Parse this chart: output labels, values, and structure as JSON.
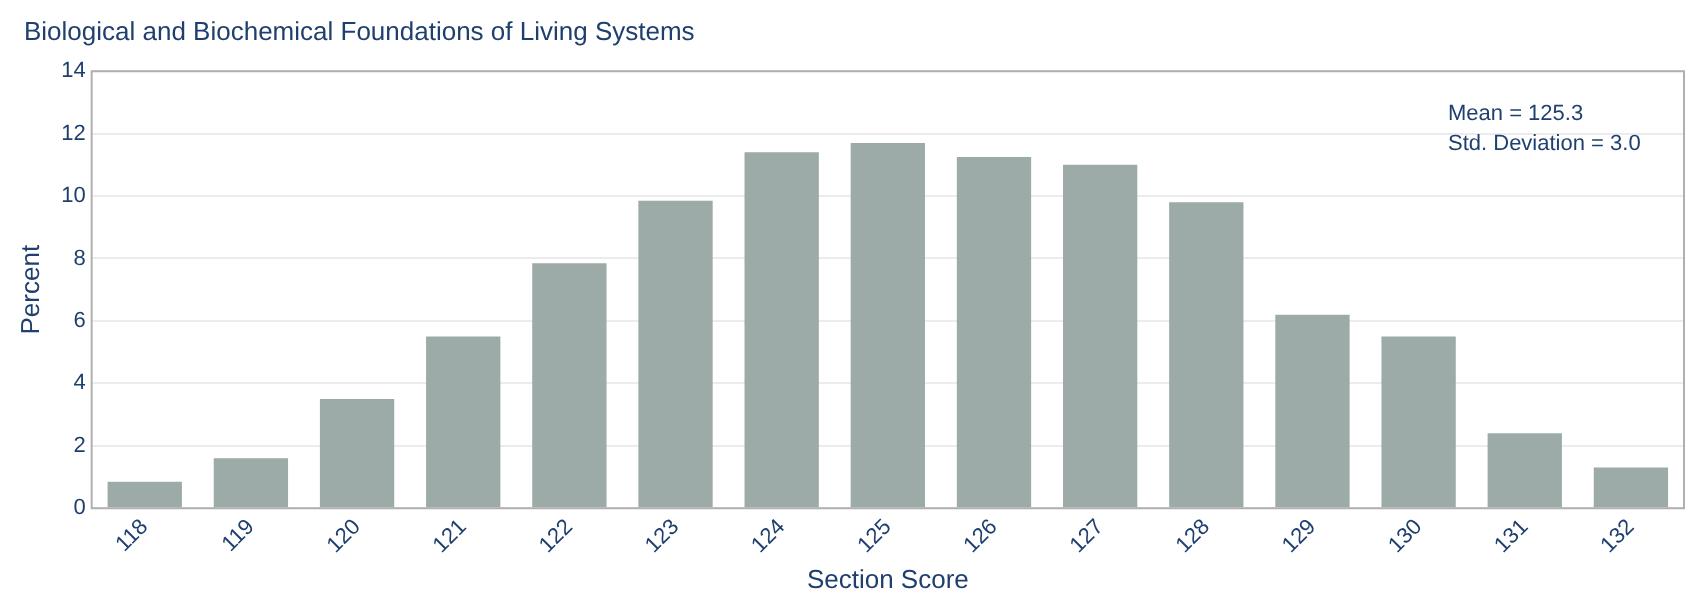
{
  "chart_data": {
    "type": "bar",
    "title": "Biological and Biochemical Foundations of Living Systems",
    "xlabel": "Section Score",
    "ylabel": "Percent",
    "categories": [
      "118",
      "119",
      "120",
      "121",
      "122",
      "123",
      "124",
      "125",
      "126",
      "127",
      "128",
      "129",
      "130",
      "131",
      "132"
    ],
    "values": [
      0.85,
      1.6,
      3.5,
      5.5,
      7.85,
      9.85,
      11.4,
      11.7,
      11.25,
      11.0,
      9.8,
      6.2,
      5.5,
      2.4,
      1.3
    ],
    "color": "#9caaa8",
    "ylim": [
      0,
      14
    ],
    "yticks": [
      0,
      2,
      4,
      6,
      8,
      10,
      12,
      14
    ],
    "grid": "y",
    "legend": false,
    "annotations": [
      "Mean = 125.3",
      "Std. Deviation = 3.0"
    ]
  }
}
